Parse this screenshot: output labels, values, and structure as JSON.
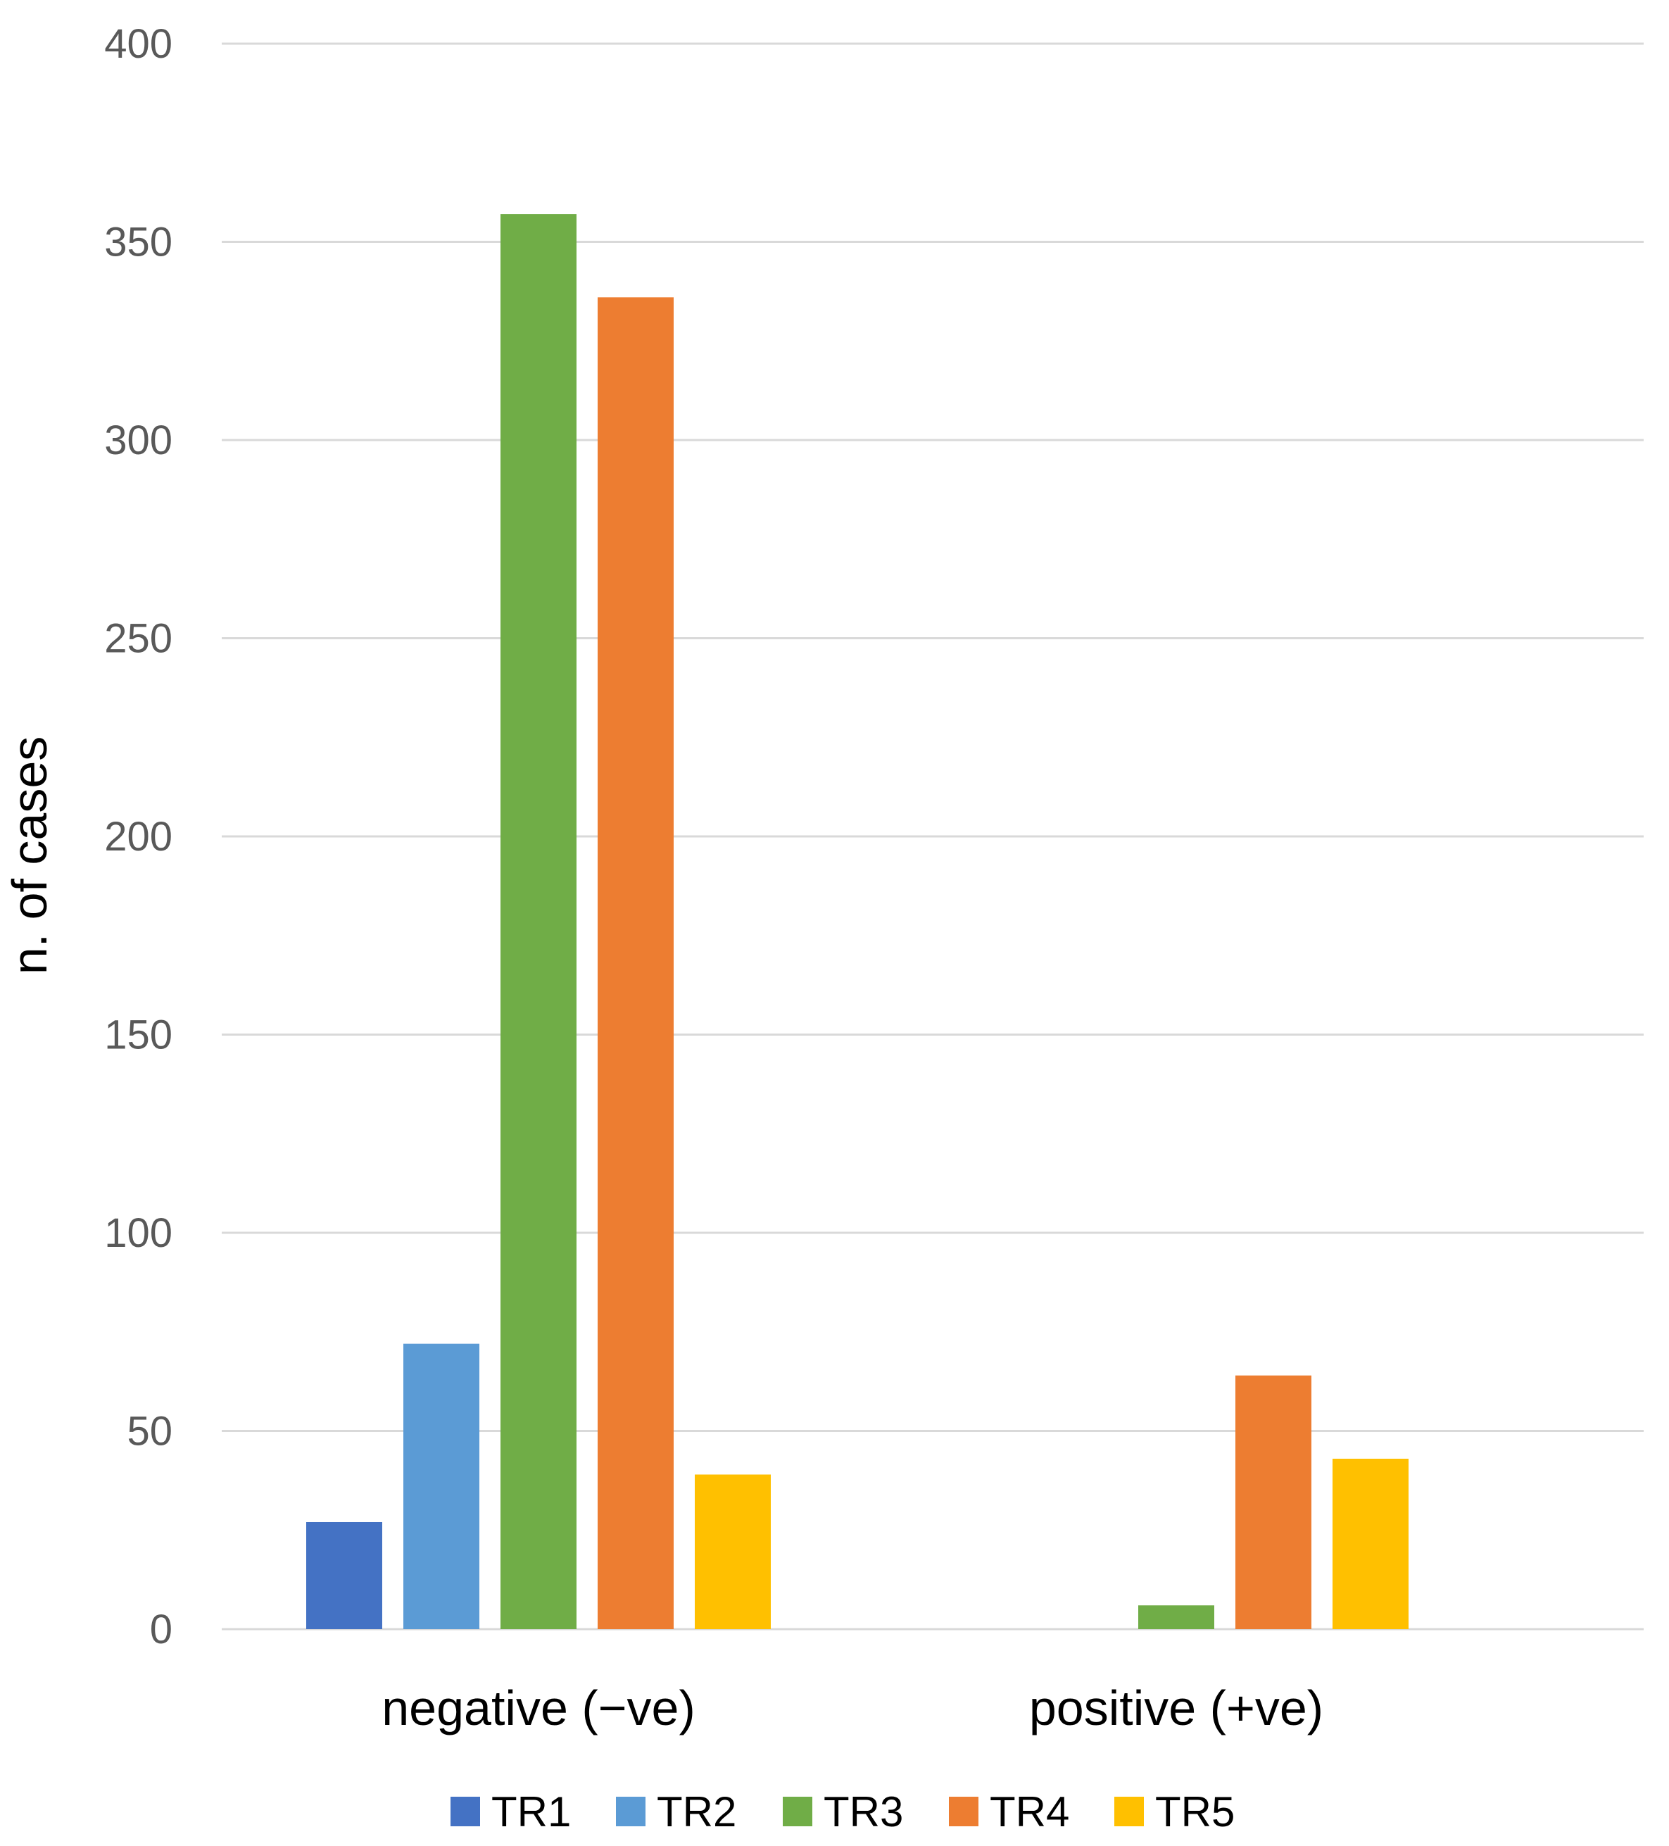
{
  "chart_data": {
    "type": "bar",
    "categories": [
      "negative (−ve)",
      "positive (+ve)"
    ],
    "series": [
      {
        "name": "TR1",
        "color": "#4472C4",
        "values": [
          27,
          0
        ]
      },
      {
        "name": "TR2",
        "color": "#5B9BD5",
        "values": [
          72,
          0
        ]
      },
      {
        "name": "TR3",
        "color": "#70AD47",
        "values": [
          357,
          6
        ]
      },
      {
        "name": "TR4",
        "color": "#ED7D31",
        "values": [
          336,
          64
        ]
      },
      {
        "name": "TR5",
        "color": "#FFC000",
        "values": [
          39,
          43
        ]
      }
    ],
    "xlabel": "",
    "ylabel": "n. of cases",
    "ylim": [
      0,
      400
    ],
    "yticks": [
      0,
      50,
      100,
      150,
      200,
      250,
      300,
      350,
      400
    ],
    "grid": true,
    "legend": "bottom"
  }
}
